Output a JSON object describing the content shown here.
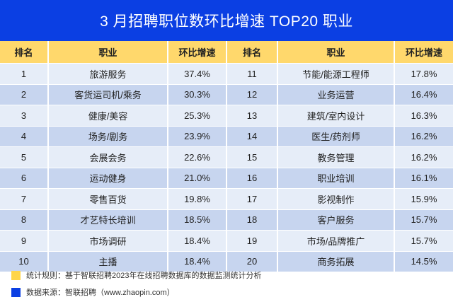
{
  "title": "3 月招聘职位数环比增速 TOP20 职业",
  "headers": [
    "排名",
    "职业",
    "环比增速",
    "排名",
    "职业",
    "环比增速"
  ],
  "rows": [
    {
      "rank_l": "1",
      "job_l": "旅游服务",
      "growth_l": "37.4%",
      "rank_r": "11",
      "job_r": "节能/能源工程师",
      "growth_r": "17.8%"
    },
    {
      "rank_l": "2",
      "job_l": "客货运司机/乘务",
      "growth_l": "30.3%",
      "rank_r": "12",
      "job_r": "业务运营",
      "growth_r": "16.4%"
    },
    {
      "rank_l": "3",
      "job_l": "健康/美容",
      "growth_l": "25.3%",
      "rank_r": "13",
      "job_r": "建筑/室内设计",
      "growth_r": "16.3%"
    },
    {
      "rank_l": "4",
      "job_l": "场务/剧务",
      "growth_l": "23.9%",
      "rank_r": "14",
      "job_r": "医生/药剂师",
      "growth_r": "16.2%"
    },
    {
      "rank_l": "5",
      "job_l": "会展会务",
      "growth_l": "22.6%",
      "rank_r": "15",
      "job_r": "教务管理",
      "growth_r": "16.2%"
    },
    {
      "rank_l": "6",
      "job_l": "运动健身",
      "growth_l": "21.0%",
      "rank_r": "16",
      "job_r": "职业培训",
      "growth_r": "16.1%"
    },
    {
      "rank_l": "7",
      "job_l": "零售百货",
      "growth_l": "19.8%",
      "rank_r": "17",
      "job_r": "影视制作",
      "growth_r": "15.9%"
    },
    {
      "rank_l": "8",
      "job_l": "才艺特长培训",
      "growth_l": "18.5%",
      "rank_r": "18",
      "job_r": "客户服务",
      "growth_r": "15.7%"
    },
    {
      "rank_l": "9",
      "job_l": "市场调研",
      "growth_l": "18.4%",
      "rank_r": "19",
      "job_r": "市场/品牌推广",
      "growth_r": "15.7%"
    },
    {
      "rank_l": "10",
      "job_l": "主播",
      "growth_l": "18.4%",
      "rank_r": "20",
      "job_r": "商务拓展",
      "growth_r": "14.5%"
    }
  ],
  "footer": {
    "rule": "统计规则：基于智联招聘2023年在线招聘数据库的数据监测统计分析",
    "source": "数据来源：智联招聘（www.zhaopin.com）"
  },
  "colors": {
    "title_bg": "#0b3fe3",
    "header_bg": "#ffd86c",
    "row_light": "#e6edf8",
    "row_dark": "#c7d5ef"
  }
}
